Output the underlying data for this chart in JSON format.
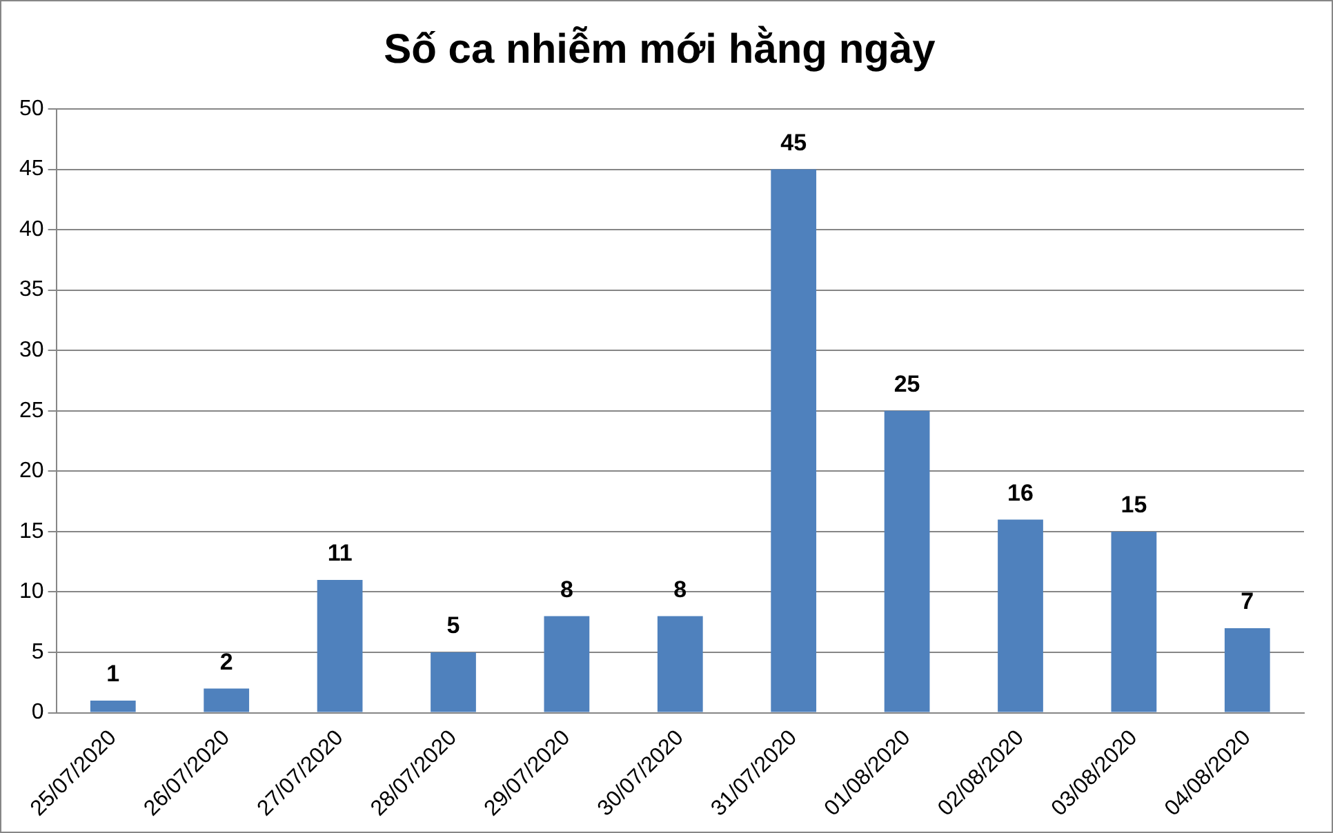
{
  "chart_data": {
    "type": "bar",
    "title": "Số ca nhiễm mới hằng ngày",
    "categories": [
      "25/07/2020",
      "26/07/2020",
      "27/07/2020",
      "28/07/2020",
      "29/07/2020",
      "30/07/2020",
      "31/07/2020",
      "01/08/2020",
      "02/08/2020",
      "03/08/2020",
      "04/08/2020"
    ],
    "values": [
      1,
      2,
      11,
      5,
      8,
      8,
      45,
      25,
      16,
      15,
      7
    ],
    "color": "#4f81bd",
    "ylim": [
      0,
      50
    ],
    "yticks": [
      0,
      5,
      10,
      15,
      20,
      25,
      30,
      35,
      40,
      45,
      50
    ],
    "grid": "y",
    "data_labels": true,
    "legend": false
  }
}
